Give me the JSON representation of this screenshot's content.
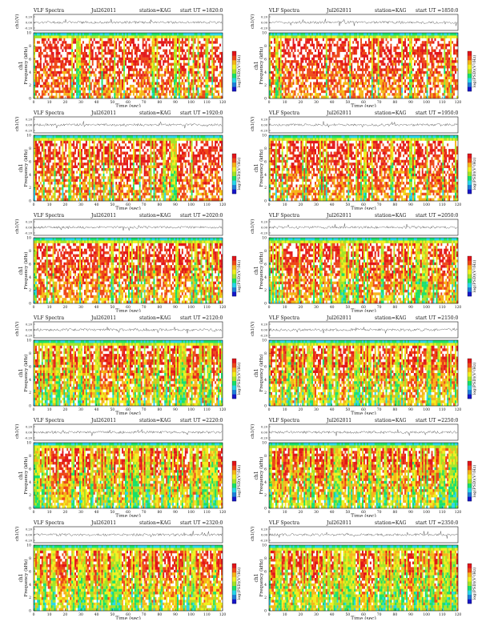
{
  "page": {
    "title": ""
  },
  "colors": {
    "spectrum": [
      "#1616c8",
      "#1f7fd9",
      "#27d6e8",
      "#18e06a",
      "#a4e426",
      "#f2ef1e",
      "#f6b418",
      "#ee4818",
      "#e2151a",
      "#ffffff"
    ],
    "trace": "#222222",
    "axis": "#111111"
  },
  "chart_data": [
    {
      "type": "heatmap",
      "title_left": "VLF Spectra",
      "date": "Jul262011",
      "station": "station=KAG",
      "start_ut": "start  UT  =1820:0",
      "waveform_ylabel": "ch1(V)",
      "waveform_yticks": [
        "0.20",
        "0.00",
        "-0.20"
      ],
      "spectrogram_ylabel": "ch1\nFrequency (kHz)",
      "ylabel_top": "ch1",
      "ylabel_main": "Frequency  (kHz)",
      "yticks": [
        0,
        2,
        4,
        6,
        8,
        10
      ],
      "ylim": [
        0,
        10
      ],
      "xlabel": "Time  (sec)",
      "xticks": [
        0,
        10,
        20,
        30,
        40,
        50,
        60,
        70,
        80,
        90,
        100,
        110,
        120
      ],
      "xlim": [
        0,
        120
      ],
      "colorbar_label": "log(PSD)(V²/Hz)",
      "intensity": 0.88
    },
    {
      "type": "heatmap",
      "title_left": "VLF Spectra",
      "date": "Jul262011",
      "station": "station=KAG",
      "start_ut": "start  UT  =1850:0",
      "ylabel_top": "ch1",
      "ylabel_main": "Frequency  (kHz)",
      "waveform_ylabel": "ch1(V)",
      "waveform_yticks": [
        "0.20",
        "0.00",
        "-0.20"
      ],
      "yticks": [
        0,
        2,
        4,
        6,
        8,
        10
      ],
      "ylim": [
        0,
        10
      ],
      "xlabel": "Time  (sec)",
      "xticks": [
        0,
        10,
        20,
        30,
        40,
        50,
        60,
        70,
        80,
        90,
        100,
        110,
        120
      ],
      "xlim": [
        0,
        120
      ],
      "colorbar_label": "log(PSD)(V²/Hz)",
      "intensity": 0.86
    },
    {
      "type": "heatmap",
      "title_left": "VLF Spectra",
      "date": "Jul262011",
      "station": "station=KAG",
      "start_ut": "start  UT  =1920:0",
      "ylabel_top": "ch1",
      "ylabel_main": "Frequency  (kHz)",
      "waveform_ylabel": "ch1(V)",
      "waveform_yticks": [
        "0.20",
        "0.00",
        "-0.20"
      ],
      "yticks": [
        0,
        2,
        4,
        6,
        8,
        10
      ],
      "ylim": [
        0,
        10
      ],
      "xlabel": "Time  (sec)",
      "xticks": [
        0,
        10,
        20,
        30,
        40,
        50,
        60,
        70,
        80,
        90,
        100,
        110,
        120
      ],
      "xlim": [
        0,
        120
      ],
      "colorbar_label": "log(PSD)(V²/Hz)",
      "intensity": 0.84
    },
    {
      "type": "heatmap",
      "title_left": "VLF Spectra",
      "date": "Jul262011",
      "station": "station=KAG",
      "start_ut": "start  UT  =1950:0",
      "ylabel_top": "ch1",
      "ylabel_main": "Frequency  (kHz)",
      "waveform_ylabel": "ch1(V)",
      "waveform_yticks": [
        "0.20",
        "0.00",
        "-0.20"
      ],
      "yticks": [
        0,
        2,
        4,
        6,
        8,
        10
      ],
      "ylim": [
        0,
        10
      ],
      "xlabel": "Time  (sec)",
      "xticks": [
        0,
        10,
        20,
        30,
        40,
        50,
        60,
        70,
        80,
        90,
        100,
        110,
        120
      ],
      "xlim": [
        0,
        120
      ],
      "colorbar_label": "log(PSD)(V²/Hz)",
      "intensity": 0.82
    },
    {
      "type": "heatmap",
      "title_left": "VLF Spectra",
      "date": "Jul262011",
      "station": "station=KAG",
      "start_ut": "start  UT  =2020:0",
      "ylabel_top": "ch1",
      "ylabel_main": "Frequency  (kHz)",
      "waveform_ylabel": "ch1(V)",
      "waveform_yticks": [
        "0.20",
        "0.00",
        "-0.20"
      ],
      "yticks": [
        0,
        2,
        4,
        6,
        8,
        10
      ],
      "ylim": [
        0,
        10
      ],
      "xlabel": "Time  (sec)",
      "xticks": [
        0,
        10,
        20,
        30,
        40,
        50,
        60,
        70,
        80,
        90,
        100,
        110,
        120
      ],
      "xlim": [
        0,
        120
      ],
      "colorbar_label": "log(PSD)(V²/Hz)",
      "intensity": 0.76
    },
    {
      "type": "heatmap",
      "title_left": "VLF Spectra",
      "date": "Jul262011",
      "station": "station=KAG",
      "start_ut": "start  UT  =2050:0",
      "ylabel_top": "ch1",
      "ylabel_main": "Frequency  (kHz)",
      "waveform_ylabel": "ch1(V)",
      "waveform_yticks": [
        "0.20",
        "0.00",
        "-0.20"
      ],
      "yticks": [
        0,
        2,
        4,
        6,
        8,
        10
      ],
      "ylim": [
        0,
        10
      ],
      "xlabel": "Time  (sec)",
      "xticks": [
        0,
        10,
        20,
        30,
        40,
        50,
        60,
        70,
        80,
        90,
        100,
        110,
        120
      ],
      "xlim": [
        0,
        120
      ],
      "colorbar_label": "log(PSD)(V²/Hz)",
      "intensity": 0.72
    },
    {
      "type": "heatmap",
      "title_left": "VLF Spectra",
      "date": "Jul262011",
      "station": "station=KAG",
      "start_ut": "start  UT  =2120:0",
      "ylabel_top": "ch1",
      "ylabel_main": "Frequency  (kHz)",
      "waveform_ylabel": "ch1(V)",
      "waveform_yticks": [
        "0.20",
        "0.00",
        "-0.20"
      ],
      "yticks": [
        0,
        2,
        4,
        6,
        8,
        10
      ],
      "ylim": [
        0,
        10
      ],
      "xlabel": "Time  (sec)",
      "xticks": [
        0,
        10,
        20,
        30,
        40,
        50,
        60,
        70,
        80,
        90,
        100,
        110,
        120
      ],
      "xlim": [
        0,
        120
      ],
      "colorbar_label": "log(PSD)(V²/Hz)",
      "intensity": 0.6
    },
    {
      "type": "heatmap",
      "title_left": "VLF Spectra",
      "date": "Jul262011",
      "station": "station=KAG",
      "start_ut": "start  UT  =2150:0",
      "ylabel_top": "ch1",
      "ylabel_main": "Frequency  (kHz)",
      "waveform_ylabel": "ch1(V)",
      "waveform_yticks": [
        "0.20",
        "0.00",
        "-0.20"
      ],
      "yticks": [
        0,
        2,
        4,
        6,
        8,
        10
      ],
      "ylim": [
        0,
        10
      ],
      "xlabel": "Time  (sec)",
      "xticks": [
        0,
        10,
        20,
        30,
        40,
        50,
        60,
        70,
        80,
        90,
        100,
        110,
        120
      ],
      "xlim": [
        0,
        120
      ],
      "colorbar_label": "log(PSD)(V²/Hz)",
      "intensity": 0.6
    },
    {
      "type": "heatmap",
      "title_left": "VLF Spectra",
      "date": "Jul262011",
      "station": "station=KAG",
      "start_ut": "start  UT  =2220:0",
      "ylabel_top": "ch1",
      "ylabel_main": "Frequency  (kHz)",
      "waveform_ylabel": "ch1(V)",
      "waveform_yticks": [
        "0.20",
        "0.00",
        "-0.20"
      ],
      "yticks": [
        0,
        2,
        4,
        6,
        8,
        10
      ],
      "ylim": [
        0,
        10
      ],
      "xlabel": "Time  (sec)",
      "xticks": [
        0,
        10,
        20,
        30,
        40,
        50,
        60,
        70,
        80,
        90,
        100,
        110,
        120
      ],
      "xlim": [
        0,
        120
      ],
      "colorbar_label": "log(PSD)(V²/Hz)",
      "intensity": 0.55
    },
    {
      "type": "heatmap",
      "title_left": "VLF Spectra",
      "date": "Jul262011",
      "station": "station=KAG",
      "start_ut": "start  UT  =2250:0",
      "ylabel_top": "ch1",
      "ylabel_main": "Frequency  (kHz)",
      "waveform_ylabel": "ch1(V)",
      "waveform_yticks": [
        "0.20",
        "0.00",
        "-0.20"
      ],
      "yticks": [
        0,
        2,
        4,
        6,
        8,
        10
      ],
      "ylim": [
        0,
        10
      ],
      "xlabel": "Time  (sec)",
      "xticks": [
        0,
        10,
        20,
        30,
        40,
        50,
        60,
        70,
        80,
        90,
        100,
        110,
        120
      ],
      "xlim": [
        0,
        120
      ],
      "colorbar_label": "log(PSD)(V²/Hz)",
      "intensity": 0.55
    },
    {
      "type": "heatmap",
      "title_left": "VLF Spectra",
      "date": "Jul262011",
      "station": "station=KAG",
      "start_ut": "start  UT  =2320:0",
      "ylabel_top": "ch1",
      "ylabel_main": "Frequency  (kHz)",
      "waveform_ylabel": "ch1(V)",
      "waveform_yticks": [
        "0.20",
        "0.00",
        "-0.20"
      ],
      "yticks": [
        0,
        2,
        4,
        6,
        8,
        10
      ],
      "ylim": [
        0,
        10
      ],
      "xlabel": "Time  (sec)",
      "xticks": [
        0,
        10,
        20,
        30,
        40,
        50,
        60,
        70,
        80,
        90,
        100,
        110,
        120
      ],
      "xlim": [
        0,
        120
      ],
      "colorbar_label": "log(PSD)(V²/Hz)",
      "intensity": 0.5
    },
    {
      "type": "heatmap",
      "title_left": "VLF Spectra",
      "date": "Jul262011",
      "station": "station=KAG",
      "start_ut": "start  UT  =2350:0",
      "ylabel_top": "ch1",
      "ylabel_main": "Frequency  (kHz)",
      "waveform_ylabel": "ch1(V)",
      "waveform_yticks": [
        "0.20",
        "0.00",
        "-0.20"
      ],
      "yticks": [
        0,
        2,
        4,
        6,
        8,
        10
      ],
      "ylim": [
        0,
        10
      ],
      "xlabel": "Time  (sec)",
      "xticks": [
        0,
        10,
        20,
        30,
        40,
        50,
        60,
        70,
        80,
        90,
        100,
        110,
        120
      ],
      "xlim": [
        0,
        120
      ],
      "colorbar_label": "log(PSD)(V²/Hz)",
      "intensity": 0.5
    }
  ]
}
